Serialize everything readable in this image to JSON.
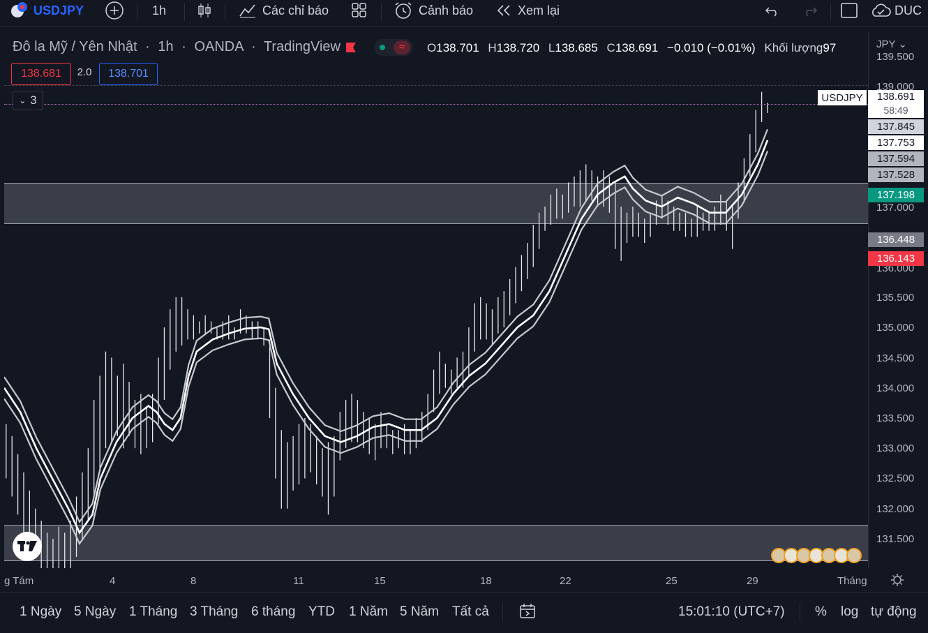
{
  "topbar": {
    "symbol": "USDJPY",
    "interval": "1h",
    "indicators_label": "Các chỉ báo",
    "alerts_label": "Cảnh báo",
    "replay_label": "Xem lại",
    "user": "DUC"
  },
  "legend": {
    "title": "Đô la Mỹ / Yên Nhật",
    "interval": "1h",
    "broker": "OANDA",
    "source": "TradingView",
    "o_label": "O",
    "o": "138.701",
    "h_label": "H",
    "h": "138.720",
    "l_label": "L",
    "l": "138.685",
    "c_label": "C",
    "c": "138.691",
    "change": "−0.010 (−0.01%)",
    "volume_label": "Khối lượng",
    "volume": "97",
    "sell_price": "138.681",
    "spread": "2.0",
    "buy_price": "138.701",
    "collapse_count": "3"
  },
  "axis": {
    "currency": "JPY",
    "ticks": [
      "139.500",
      "139.000",
      "137.000",
      "136.000",
      "135.500",
      "135.000",
      "134.500",
      "134.000",
      "133.500",
      "133.000",
      "132.500",
      "132.000",
      "131.500"
    ],
    "tags": {
      "symbol": "USDJPY",
      "last": "138.691",
      "countdown": "58:49",
      "t1": "137.845",
      "t2": "137.753",
      "t3": "137.594",
      "t4": "137.528",
      "green": "137.198",
      "gray": "136.448",
      "red": "136.143"
    }
  },
  "xaxis": {
    "ticks": [
      "g Tám",
      "4",
      "8",
      "11",
      "15",
      "18",
      "22",
      "25",
      "29",
      "Tháng"
    ]
  },
  "bottombar": {
    "ranges": [
      "1 Ngày",
      "5 Ngày",
      "1 Tháng",
      "3 Tháng",
      "6 tháng",
      "YTD",
      "1 Năm",
      "5 Năm",
      "Tất cả"
    ],
    "time": "15:01:10 (UTC+7)",
    "percent": "%",
    "log": "log",
    "auto": "tự động"
  },
  "colors": {
    "bg": "#131722",
    "red": "#f23645",
    "green": "#089981",
    "blue": "#2962ff"
  },
  "chart_data": {
    "type": "line",
    "ylim": [
      131.0,
      139.6
    ],
    "ema_mid": [
      [
        0,
        134.0
      ],
      [
        10,
        133.6
      ],
      [
        20,
        133.0
      ],
      [
        30,
        132.5
      ],
      [
        40,
        132.0
      ],
      [
        47,
        131.6
      ],
      [
        55,
        131.9
      ],
      [
        60,
        132.5
      ],
      [
        70,
        133.1
      ],
      [
        80,
        133.5
      ],
      [
        90,
        133.7
      ],
      [
        95,
        133.6
      ],
      [
        100,
        133.4
      ],
      [
        105,
        133.3
      ],
      [
        110,
        133.5
      ],
      [
        115,
        134.2
      ],
      [
        120,
        134.6
      ],
      [
        130,
        134.8
      ],
      [
        140,
        134.9
      ],
      [
        150,
        134.98
      ],
      [
        160,
        135.0
      ],
      [
        165,
        134.97
      ],
      [
        170,
        134.4
      ],
      [
        180,
        133.9
      ],
      [
        190,
        133.5
      ],
      [
        200,
        133.2
      ],
      [
        210,
        133.1
      ],
      [
        220,
        133.2
      ],
      [
        230,
        133.35
      ],
      [
        240,
        133.4
      ],
      [
        250,
        133.3
      ],
      [
        260,
        133.3
      ],
      [
        270,
        133.5
      ],
      [
        280,
        133.9
      ],
      [
        290,
        134.2
      ],
      [
        300,
        134.4
      ],
      [
        310,
        134.7
      ],
      [
        320,
        135.0
      ],
      [
        330,
        135.2
      ],
      [
        340,
        135.6
      ],
      [
        350,
        136.2
      ],
      [
        360,
        136.8
      ],
      [
        370,
        137.2
      ],
      [
        380,
        137.4
      ],
      [
        387,
        137.5
      ],
      [
        392,
        137.3
      ],
      [
        400,
        137.1
      ],
      [
        410,
        137.0
      ],
      [
        420,
        137.15
      ],
      [
        430,
        137.05
      ],
      [
        440,
        136.9
      ],
      [
        450,
        136.9
      ],
      [
        460,
        137.2
      ],
      [
        470,
        137.7
      ],
      [
        476,
        138.1
      ]
    ],
    "candles": [
      [
        1,
        133.4,
        132.5
      ],
      [
        4,
        133.2,
        132.2
      ],
      [
        7,
        132.9,
        131.9
      ],
      [
        10,
        132.6,
        131.6
      ],
      [
        13,
        132.3,
        131.4
      ],
      [
        16,
        132.0,
        131.2
      ],
      [
        19,
        131.8,
        131.0
      ],
      [
        22,
        131.6,
        131.0
      ],
      [
        25,
        131.5,
        130.9
      ],
      [
        28,
        131.7,
        131.0
      ],
      [
        31,
        131.6,
        130.8
      ],
      [
        34,
        131.8,
        131.0
      ],
      [
        37,
        132.2,
        131.2
      ],
      [
        40,
        132.6,
        131.5
      ],
      [
        43,
        133.0,
        131.8
      ],
      [
        46,
        133.8,
        132.2
      ],
      [
        49,
        134.2,
        132.6
      ],
      [
        52,
        134.6,
        133.0
      ],
      [
        55,
        134.5,
        133.1
      ],
      [
        58,
        134.2,
        133.2
      ],
      [
        61,
        134.4,
        133.0
      ],
      [
        64,
        134.1,
        133.2
      ],
      [
        67,
        133.8,
        133.0
      ],
      [
        70,
        133.9,
        132.9
      ],
      [
        73,
        133.7,
        133.0
      ],
      [
        76,
        133.9,
        133.1
      ],
      [
        79,
        134.5,
        133.4
      ],
      [
        82,
        135.0,
        133.8
      ],
      [
        85,
        135.3,
        134.3
      ],
      [
        88,
        135.5,
        134.6
      ],
      [
        91,
        135.5,
        134.7
      ],
      [
        94,
        135.3,
        134.8
      ],
      [
        97,
        135.2,
        134.8
      ],
      [
        100,
        135.1,
        134.9
      ],
      [
        103,
        135.2,
        134.9
      ],
      [
        106,
        135.1,
        134.9
      ],
      [
        109,
        135.0,
        134.8
      ],
      [
        112,
        135.1,
        134.8
      ],
      [
        115,
        135.2,
        134.8
      ],
      [
        118,
        135.0,
        134.8
      ],
      [
        121,
        135.3,
        134.9
      ],
      [
        124,
        135.2,
        134.9
      ],
      [
        127,
        135.1,
        134.8
      ],
      [
        130,
        135.1,
        134.8
      ],
      [
        133,
        135.0,
        134.7
      ],
      [
        136,
        134.8,
        133.5
      ],
      [
        139,
        134.0,
        132.5
      ],
      [
        142,
        133.3,
        132.0
      ],
      [
        145,
        133.1,
        132.0
      ],
      [
        148,
        133.2,
        132.3
      ],
      [
        151,
        133.4,
        132.4
      ],
      [
        154,
        133.5,
        132.5
      ],
      [
        157,
        133.4,
        132.6
      ],
      [
        160,
        133.2,
        132.4
      ],
      [
        163,
        133.0,
        132.2
      ],
      [
        166,
        133.1,
        131.9
      ],
      [
        169,
        133.2,
        132.2
      ],
      [
        172,
        133.6,
        132.8
      ],
      [
        175,
        133.8,
        133.0
      ],
      [
        178,
        133.9,
        133.1
      ],
      [
        181,
        133.8,
        133.1
      ],
      [
        184,
        133.6,
        133.0
      ],
      [
        187,
        133.5,
        132.9
      ],
      [
        190,
        133.4,
        132.8
      ],
      [
        193,
        133.6,
        133.0
      ],
      [
        196,
        133.4,
        133.0
      ],
      [
        199,
        133.3,
        132.9
      ],
      [
        202,
        133.3,
        133.0
      ],
      [
        205,
        133.4,
        132.9
      ],
      [
        208,
        133.3,
        132.9
      ],
      [
        211,
        133.5,
        133.0
      ],
      [
        214,
        133.6,
        133.1
      ],
      [
        217,
        133.9,
        133.3
      ],
      [
        220,
        134.3,
        133.6
      ],
      [
        223,
        134.6,
        133.9
      ],
      [
        226,
        134.4,
        134.0
      ],
      [
        229,
        134.3,
        133.9
      ],
      [
        232,
        134.5,
        134.0
      ],
      [
        235,
        134.6,
        134.0
      ],
      [
        238,
        135.0,
        134.2
      ],
      [
        241,
        135.4,
        134.6
      ],
      [
        244,
        135.5,
        134.8
      ],
      [
        247,
        135.4,
        134.8
      ],
      [
        250,
        135.3,
        134.7
      ],
      [
        253,
        135.5,
        134.9
      ],
      [
        256,
        135.6,
        135.0
      ],
      [
        259,
        135.8,
        135.2
      ],
      [
        262,
        136.0,
        135.4
      ],
      [
        265,
        136.2,
        135.6
      ],
      [
        268,
        136.4,
        135.8
      ],
      [
        271,
        136.7,
        136.0
      ],
      [
        274,
        136.9,
        136.3
      ],
      [
        277,
        137.0,
        136.6
      ],
      [
        280,
        137.2,
        136.7
      ],
      [
        283,
        137.3,
        136.8
      ],
      [
        286,
        137.2,
        136.8
      ],
      [
        289,
        137.4,
        136.9
      ],
      [
        292,
        137.5,
        137.0
      ],
      [
        295,
        137.6,
        137.0
      ],
      [
        298,
        137.7,
        137.1
      ],
      [
        301,
        137.6,
        137.1
      ],
      [
        304,
        137.5,
        137.0
      ],
      [
        307,
        137.6,
        137.0
      ],
      [
        310,
        137.5,
        136.9
      ],
      [
        313,
        137.4,
        136.3
      ],
      [
        316,
        137.0,
        136.1
      ],
      [
        319,
        136.9,
        136.4
      ],
      [
        322,
        137.0,
        136.5
      ],
      [
        325,
        136.9,
        136.5
      ],
      [
        328,
        136.8,
        136.4
      ],
      [
        331,
        136.9,
        136.5
      ],
      [
        334,
        137.1,
        136.7
      ],
      [
        337,
        137.2,
        136.8
      ],
      [
        340,
        137.1,
        136.7
      ],
      [
        343,
        137.0,
        136.6
      ],
      [
        346,
        136.9,
        136.6
      ],
      [
        349,
        136.9,
        136.5
      ],
      [
        352,
        136.8,
        136.5
      ],
      [
        355,
        137.0,
        136.5
      ],
      [
        358,
        136.9,
        136.6
      ],
      [
        361,
        136.9,
        136.6
      ],
      [
        364,
        137.0,
        136.6
      ],
      [
        367,
        137.2,
        136.7
      ],
      [
        370,
        137.1,
        136.6
      ],
      [
        373,
        137.0,
        136.3
      ],
      [
        376,
        137.4,
        136.8
      ],
      [
        379,
        137.8,
        137.1
      ],
      [
        382,
        138.2,
        137.5
      ],
      [
        385,
        138.6,
        137.9
      ],
      [
        388,
        138.9,
        138.4
      ],
      [
        391,
        138.72,
        138.55
      ]
    ]
  }
}
